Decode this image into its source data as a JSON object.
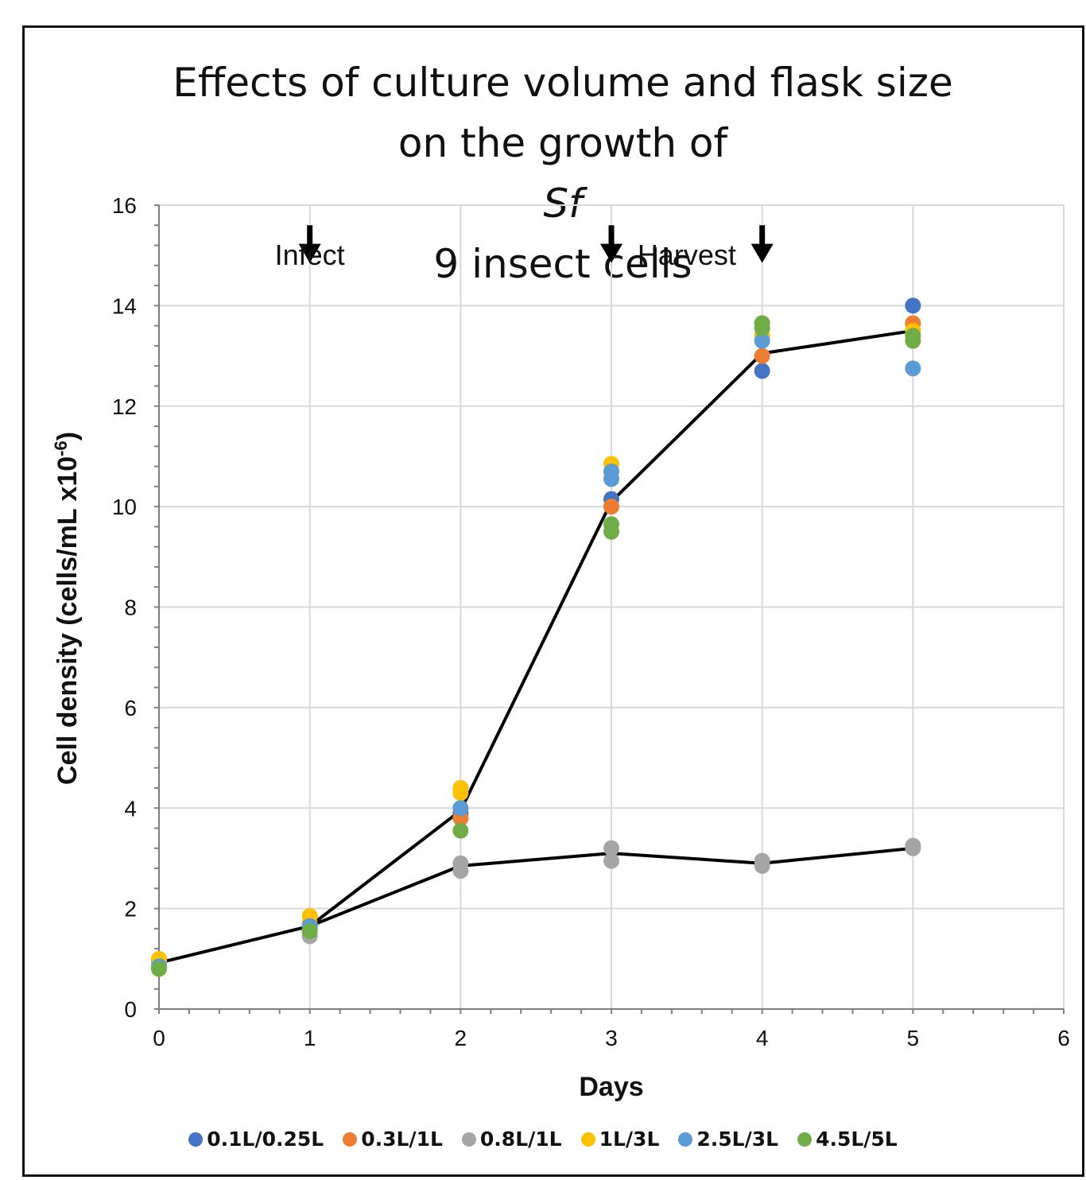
{
  "title": {
    "line1": "Effects of culture volume and flask size",
    "line2_pre": "on the growth of ",
    "line2_italic": "Sf",
    "line2_post": "9 insect cells"
  },
  "chart_data": {
    "type": "scatter",
    "title": "Effects of culture volume and flask size on the growth of Sf9 insect cells",
    "xlabel": "Days",
    "ylabel": "Cell density (cells/mL x10",
    "ylabel_sup": "-6",
    "ylabel_end": ")",
    "xlim": [
      0,
      6
    ],
    "ylim": [
      0,
      16
    ],
    "xticks": [
      0,
      1,
      2,
      3,
      4,
      5,
      6
    ],
    "yticks": [
      0,
      2,
      4,
      6,
      8,
      10,
      12,
      14,
      16
    ],
    "grid": true,
    "legend_position": "bottom",
    "series": [
      {
        "name": "0.1L/0.25L",
        "color": "#4472c4",
        "points": [
          [
            0,
            0.9
          ],
          [
            1,
            1.6
          ],
          [
            2,
            3.9
          ],
          [
            3,
            10.15
          ],
          [
            4,
            12.7
          ],
          [
            5,
            14.0
          ]
        ]
      },
      {
        "name": "0.3L/1L",
        "color": "#ed7d31",
        "points": [
          [
            0,
            0.95
          ],
          [
            1,
            1.7
          ],
          [
            2,
            3.8
          ],
          [
            3,
            10.0
          ],
          [
            4,
            13.0
          ],
          [
            5,
            13.65
          ]
        ]
      },
      {
        "name": "0.8L/1L",
        "color": "#a5a5a5",
        "points": [
          [
            0,
            0.9
          ],
          [
            1,
            1.45
          ],
          [
            2,
            2.75
          ],
          [
            2,
            2.9
          ],
          [
            3,
            2.95
          ],
          [
            3,
            3.2
          ],
          [
            4,
            2.85
          ],
          [
            4,
            2.95
          ],
          [
            5,
            3.2
          ],
          [
            5,
            3.25
          ]
        ]
      },
      {
        "name": "1L/3L",
        "color": "#ffc000",
        "points": [
          [
            0,
            1.0
          ],
          [
            1,
            1.85
          ],
          [
            2,
            4.3
          ],
          [
            2,
            4.4
          ],
          [
            3,
            10.85
          ],
          [
            4,
            13.4
          ],
          [
            5,
            13.5
          ]
        ]
      },
      {
        "name": "2.5L/3L",
        "color": "#5b9bd5",
        "points": [
          [
            0,
            0.85
          ],
          [
            1,
            1.65
          ],
          [
            2,
            4.0
          ],
          [
            3,
            10.55
          ],
          [
            3,
            10.7
          ],
          [
            4,
            13.3
          ],
          [
            5,
            12.75
          ]
        ]
      },
      {
        "name": "4.5L/5L",
        "color": "#70ad47",
        "points": [
          [
            0,
            0.8
          ],
          [
            1,
            1.55
          ],
          [
            2,
            3.55
          ],
          [
            3,
            9.5
          ],
          [
            3,
            9.65
          ],
          [
            4,
            13.55
          ],
          [
            4,
            13.65
          ],
          [
            5,
            13.3
          ],
          [
            5,
            13.4
          ]
        ]
      }
    ],
    "trend_lines": [
      {
        "points": [
          [
            0,
            0.92
          ],
          [
            1,
            1.65
          ],
          [
            2,
            3.95
          ],
          [
            3,
            10.1
          ],
          [
            4,
            13.05
          ],
          [
            5,
            13.5
          ]
        ]
      },
      {
        "points": [
          [
            1,
            1.65
          ],
          [
            2,
            2.85
          ],
          [
            3,
            3.1
          ],
          [
            4,
            2.9
          ],
          [
            5,
            3.2
          ]
        ]
      }
    ],
    "annotations": [
      {
        "text": "Infect",
        "x": 1,
        "y": 15.0
      },
      {
        "text": "Harvest",
        "x": 3.5,
        "y": 15.0
      }
    ],
    "arrows": [
      {
        "x": 1,
        "y_top": 15.6,
        "y_tip": 14.85
      },
      {
        "x": 3,
        "y_top": 15.6,
        "y_tip": 14.85
      },
      {
        "x": 4,
        "y_top": 15.6,
        "y_tip": 14.85
      }
    ]
  }
}
